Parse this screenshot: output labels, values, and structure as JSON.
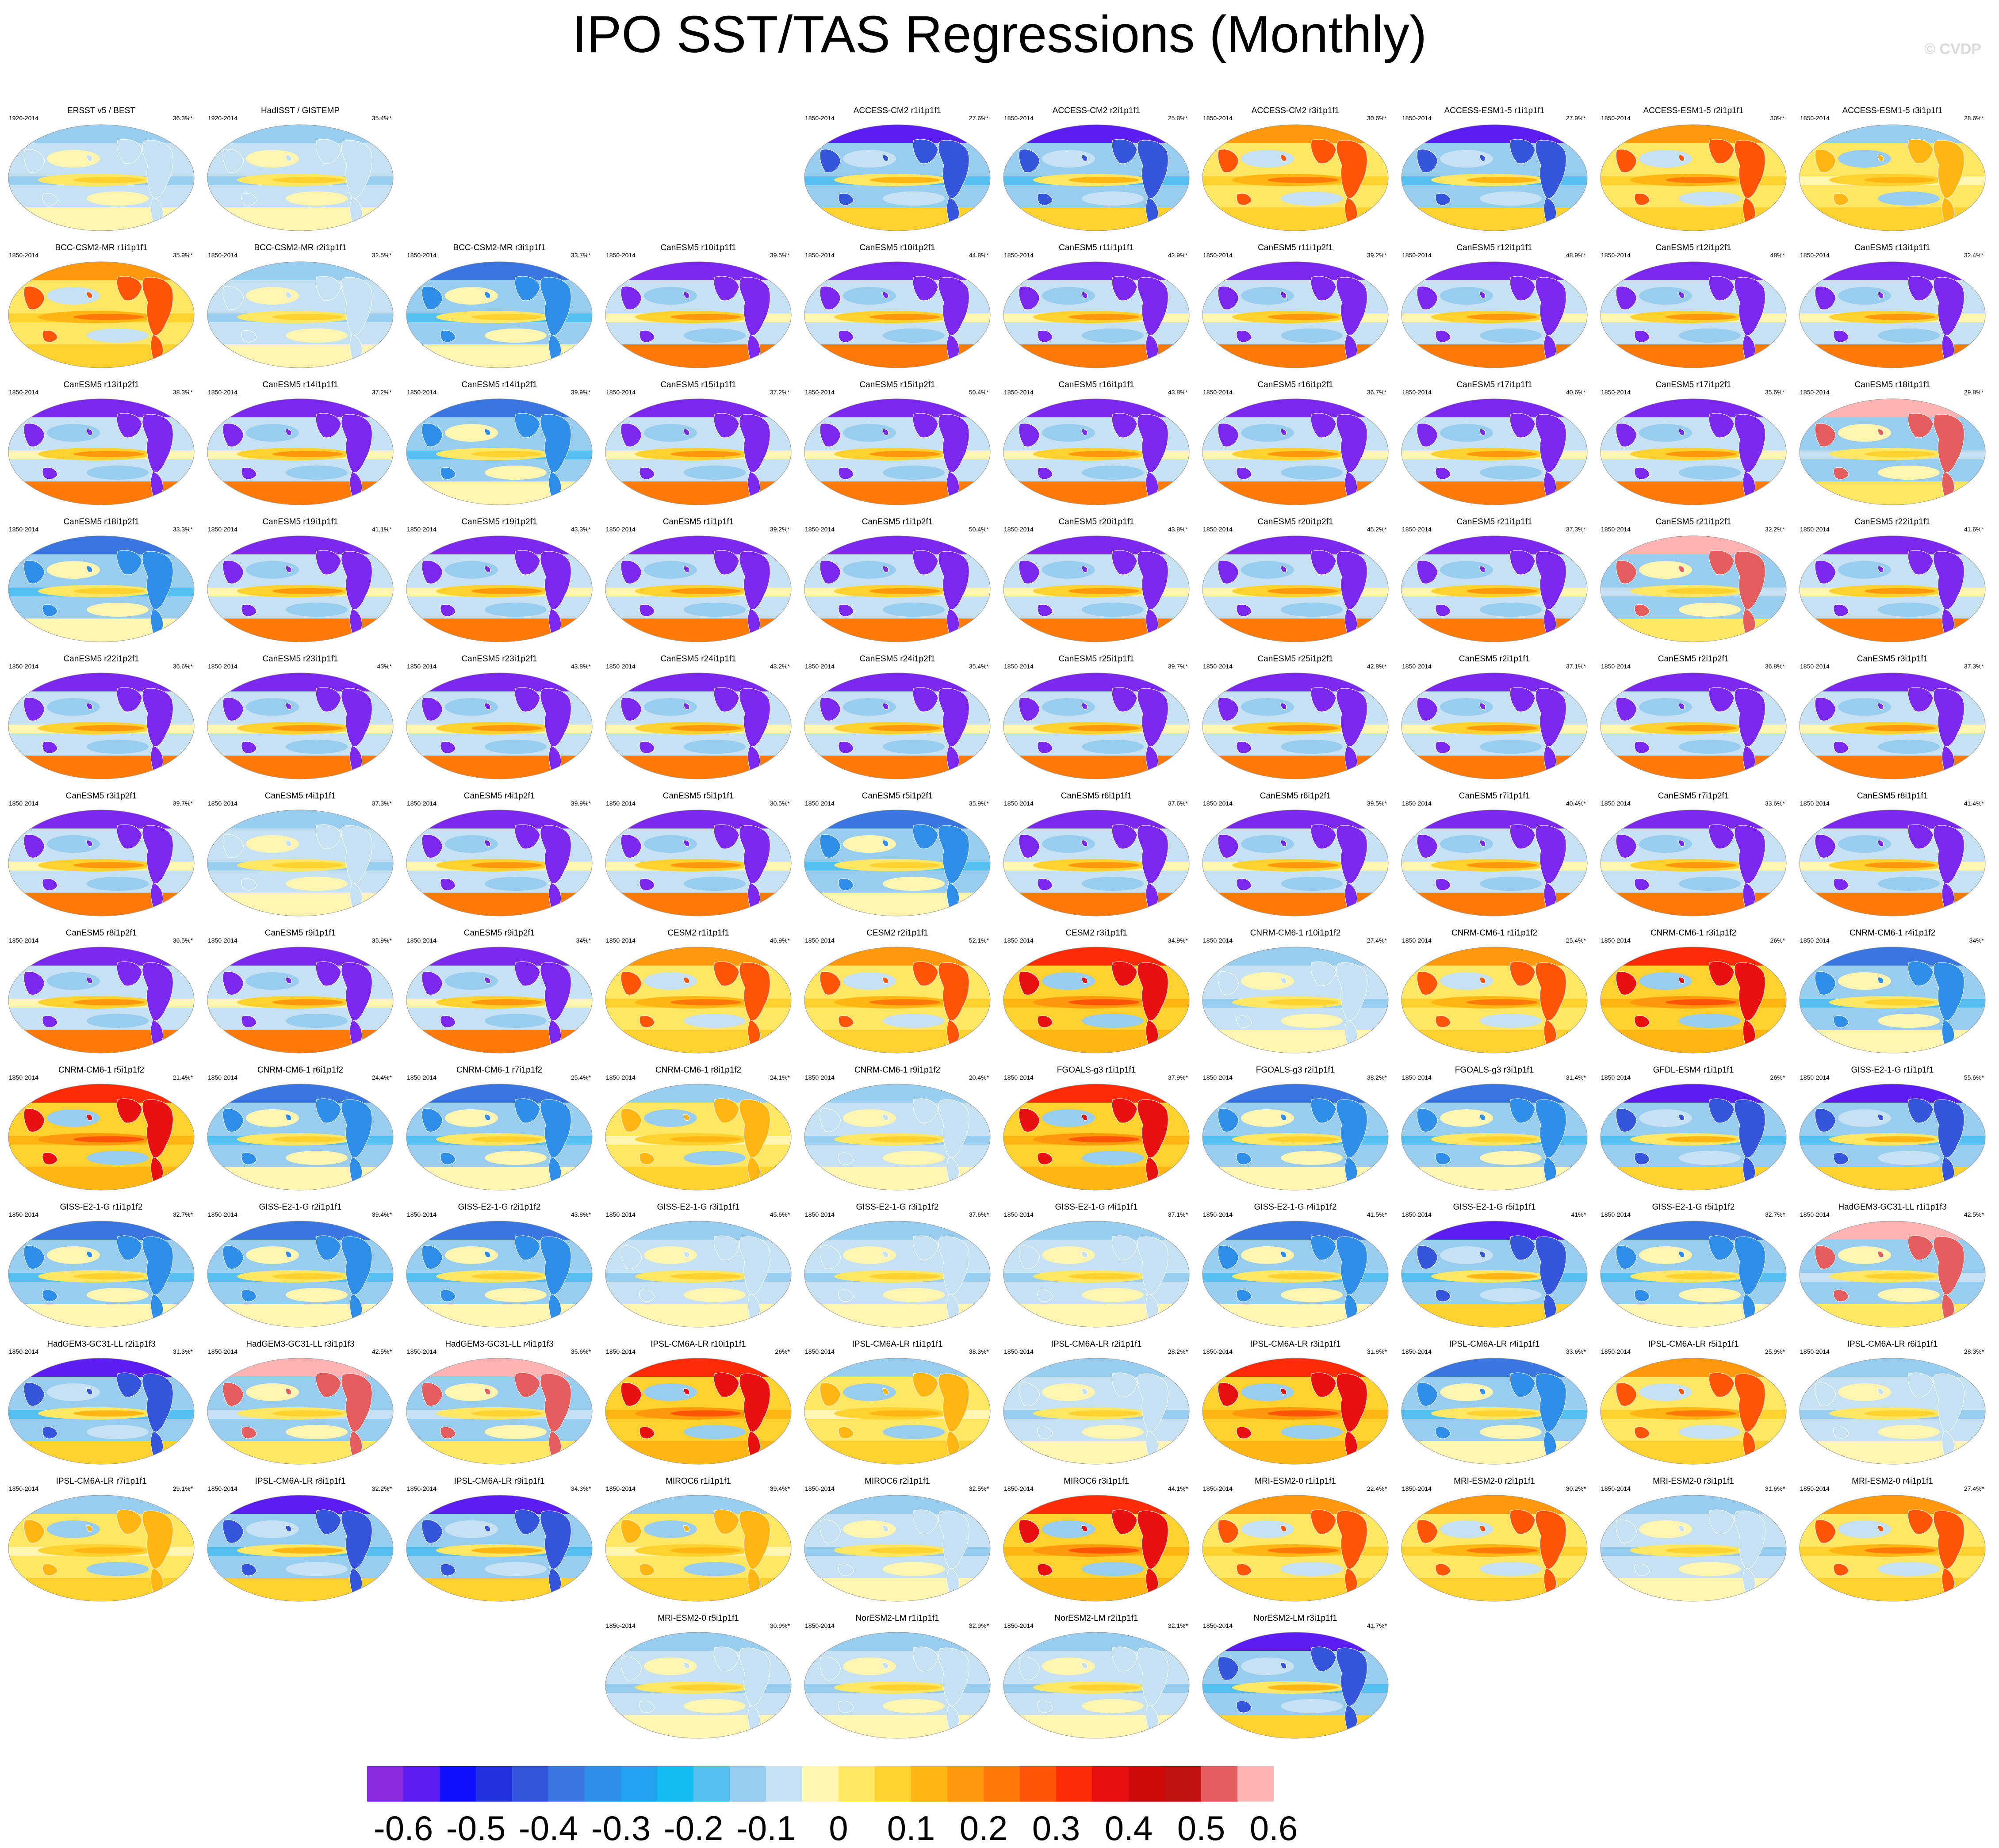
{
  "title": "IPO SST/TAS Regressions (Monthly)",
  "watermark": "© CVDP",
  "colors": {
    "background": "#ffffff",
    "scale": [
      "#8a2be2",
      "#5a1ef0",
      "#1010ff",
      "#2232e0",
      "#3556dc",
      "#3a76e0",
      "#2e8ee8",
      "#20a2f0",
      "#10bcf0",
      "#55c0ef",
      "#98cdef",
      "#c6e1f2",
      "#fff5b0",
      "#ffe763",
      "#ffd12e",
      "#ffb612",
      "#ff980b",
      "#ff7a08",
      "#ff5508",
      "#ff2a08",
      "#e81010",
      "#cc0a0a",
      "#c01212",
      "#e45e5e",
      "#ffb3b3"
    ]
  },
  "colorbar": {
    "labels": [
      "-0.6",
      "-0.5",
      "-0.4",
      "-0.3",
      "-0.2",
      "-0.1",
      "0",
      "0.1",
      "0.2",
      "0.3",
      "0.4",
      "0.5",
      "0.6"
    ]
  },
  "rows": [
    [
      {
        "col": 0,
        "title": "ERSST v5 / BEST",
        "years": "1920-2014",
        "pct": "36.3%*",
        "style": "pale"
      },
      {
        "col": 1,
        "title": "HadISST / GISTEMP",
        "years": "1920-2014",
        "pct": "35.4%*",
        "style": "pale"
      },
      {
        "col": 4,
        "title": "ACCESS-CM2 r1i1p1f1",
        "years": "1850-2014",
        "pct": "27.6%*",
        "style": "cold"
      },
      {
        "col": 5,
        "title": "ACCESS-CM2 r2i1p1f1",
        "years": "1850-2014",
        "pct": "25.8%*",
        "style": "cold"
      },
      {
        "col": 6,
        "title": "ACCESS-CM2 r3i1p1f1",
        "years": "1850-2014",
        "pct": "30.6%*",
        "style": "warm"
      },
      {
        "col": 7,
        "title": "ACCESS-ESM1-5 r1i1p1f1",
        "years": "1850-2014",
        "pct": "27.9%*",
        "style": "cold"
      },
      {
        "col": 8,
        "title": "ACCESS-ESM1-5 r2i1p1f1",
        "years": "1850-2014",
        "pct": "30%*",
        "style": "warm"
      },
      {
        "col": 9,
        "title": "ACCESS-ESM1-5 r3i1p1f1",
        "years": "1850-2014",
        "pct": "28.6%*",
        "style": "mixed"
      }
    ],
    [
      {
        "col": 0,
        "title": "BCC-CSM2-MR r1i1p1f1",
        "years": "1850-2014",
        "pct": "35.9%*",
        "style": "warm"
      },
      {
        "col": 1,
        "title": "BCC-CSM2-MR r2i1p1f1",
        "years": "1850-2014",
        "pct": "32.5%*",
        "style": "pale"
      },
      {
        "col": 2,
        "title": "BCC-CSM2-MR r3i1p1f1",
        "years": "1850-2014",
        "pct": "33.7%*",
        "style": "bluish"
      },
      {
        "col": 3,
        "title": "CanESM5 r10i1p1f1",
        "years": "1850-2014",
        "pct": "39.5%*",
        "style": "canesm"
      },
      {
        "col": 4,
        "title": "CanESM5 r10i1p2f1",
        "years": "1850-2014",
        "pct": "44.8%*",
        "style": "canesm"
      },
      {
        "col": 5,
        "title": "CanESM5 r11i1p1f1",
        "years": "1850-2014",
        "pct": "42.9%*",
        "style": "canesm"
      },
      {
        "col": 6,
        "title": "CanESM5 r11i1p2f1",
        "years": "1850-2014",
        "pct": "39.2%*",
        "style": "canesm"
      },
      {
        "col": 7,
        "title": "CanESM5 r12i1p1f1",
        "years": "1850-2014",
        "pct": "48.9%*",
        "style": "canesm"
      },
      {
        "col": 8,
        "title": "CanESM5 r12i1p2f1",
        "years": "1850-2014",
        "pct": "48%*",
        "style": "canesm"
      },
      {
        "col": 9,
        "title": "CanESM5 r13i1p1f1",
        "years": "1850-2014",
        "pct": "32.4%*",
        "style": "canesm"
      }
    ],
    [
      {
        "col": 0,
        "title": "CanESM5 r13i1p2f1",
        "years": "1850-2014",
        "pct": "38.3%*",
        "style": "canesm"
      },
      {
        "col": 1,
        "title": "CanESM5 r14i1p1f1",
        "years": "1850-2014",
        "pct": "37.2%*",
        "style": "canesm"
      },
      {
        "col": 2,
        "title": "CanESM5 r14i1p2f1",
        "years": "1850-2014",
        "pct": "39.9%*",
        "style": "bluish"
      },
      {
        "col": 3,
        "title": "CanESM5 r15i1p1f1",
        "years": "1850-2014",
        "pct": "37.2%*",
        "style": "canesm"
      },
      {
        "col": 4,
        "title": "CanESM5 r15i1p2f1",
        "years": "1850-2014",
        "pct": "50.4%*",
        "style": "canesm"
      },
      {
        "col": 5,
        "title": "CanESM5 r16i1p1f1",
        "years": "1850-2014",
        "pct": "43.8%*",
        "style": "canesm"
      },
      {
        "col": 6,
        "title": "CanESM5 r16i1p2f1",
        "years": "1850-2014",
        "pct": "36.7%*",
        "style": "canesm"
      },
      {
        "col": 7,
        "title": "CanESM5 r17i1p1f1",
        "years": "1850-2014",
        "pct": "40.6%*",
        "style": "canesm"
      },
      {
        "col": 8,
        "title": "CanESM5 r17i1p2f1",
        "years": "1850-2014",
        "pct": "35.6%*",
        "style": "canesm"
      },
      {
        "col": 9,
        "title": "CanESM5 r18i1p1f1",
        "years": "1850-2014",
        "pct": "29.8%*",
        "style": "pink"
      }
    ],
    [
      {
        "col": 0,
        "title": "CanESM5 r18i1p2f1",
        "years": "1850-2014",
        "pct": "33.3%*",
        "style": "bluish"
      },
      {
        "col": 1,
        "title": "CanESM5 r19i1p1f1",
        "years": "1850-2014",
        "pct": "41.1%*",
        "style": "canesm"
      },
      {
        "col": 2,
        "title": "CanESM5 r19i1p2f1",
        "years": "1850-2014",
        "pct": "43.3%*",
        "style": "canesm"
      },
      {
        "col": 3,
        "title": "CanESM5 r1i1p1f1",
        "years": "1850-2014",
        "pct": "39.2%*",
        "style": "canesm"
      },
      {
        "col": 4,
        "title": "CanESM5 r1i1p2f1",
        "years": "1850-2014",
        "pct": "50.4%*",
        "style": "canesm"
      },
      {
        "col": 5,
        "title": "CanESM5 r20i1p1f1",
        "years": "1850-2014",
        "pct": "43.8%*",
        "style": "canesm"
      },
      {
        "col": 6,
        "title": "CanESM5 r20i1p2f1",
        "years": "1850-2014",
        "pct": "45.2%*",
        "style": "canesm"
      },
      {
        "col": 7,
        "title": "CanESM5 r21i1p1f1",
        "years": "1850-2014",
        "pct": "37.3%*",
        "style": "canesm"
      },
      {
        "col": 8,
        "title": "CanESM5 r21i1p2f1",
        "years": "1850-2014",
        "pct": "32.2%*",
        "style": "pink"
      },
      {
        "col": 9,
        "title": "CanESM5 r22i1p1f1",
        "years": "1850-2014",
        "pct": "41.6%*",
        "style": "canesm"
      }
    ],
    [
      {
        "col": 0,
        "title": "CanESM5 r22i1p2f1",
        "years": "1850-2014",
        "pct": "36.6%*",
        "style": "canesm"
      },
      {
        "col": 1,
        "title": "CanESM5 r23i1p1f1",
        "years": "1850-2014",
        "pct": "43%*",
        "style": "canesm"
      },
      {
        "col": 2,
        "title": "CanESM5 r23i1p2f1",
        "years": "1850-2014",
        "pct": "43.8%*",
        "style": "canesm"
      },
      {
        "col": 3,
        "title": "CanESM5 r24i1p1f1",
        "years": "1850-2014",
        "pct": "43.2%*",
        "style": "canesm"
      },
      {
        "col": 4,
        "title": "CanESM5 r24i1p2f1",
        "years": "1850-2014",
        "pct": "35.4%*",
        "style": "canesm"
      },
      {
        "col": 5,
        "title": "CanESM5 r25i1p1f1",
        "years": "1850-2014",
        "pct": "39.7%*",
        "style": "canesm"
      },
      {
        "col": 6,
        "title": "CanESM5 r25i1p2f1",
        "years": "1850-2014",
        "pct": "42.8%*",
        "style": "canesm"
      },
      {
        "col": 7,
        "title": "CanESM5 r2i1p1f1",
        "years": "1850-2014",
        "pct": "37.1%*",
        "style": "canesm"
      },
      {
        "col": 8,
        "title": "CanESM5 r2i1p2f1",
        "years": "1850-2014",
        "pct": "36.8%*",
        "style": "canesm"
      },
      {
        "col": 9,
        "title": "CanESM5 r3i1p1f1",
        "years": "1850-2014",
        "pct": "37.3%*",
        "style": "canesm"
      }
    ],
    [
      {
        "col": 0,
        "title": "CanESM5 r3i1p2f1",
        "years": "1850-2014",
        "pct": "39.7%*",
        "style": "canesm"
      },
      {
        "col": 1,
        "title": "CanESM5 r4i1p1f1",
        "years": "1850-2014",
        "pct": "37.3%*",
        "style": "pale"
      },
      {
        "col": 2,
        "title": "CanESM5 r4i1p2f1",
        "years": "1850-2014",
        "pct": "39.9%*",
        "style": "canesm"
      },
      {
        "col": 3,
        "title": "CanESM5 r5i1p1f1",
        "years": "1850-2014",
        "pct": "30.5%*",
        "style": "canesm"
      },
      {
        "col": 4,
        "title": "CanESM5 r5i1p2f1",
        "years": "1850-2014",
        "pct": "35.9%*",
        "style": "bluish"
      },
      {
        "col": 5,
        "title": "CanESM5 r6i1p1f1",
        "years": "1850-2014",
        "pct": "37.6%*",
        "style": "canesm"
      },
      {
        "col": 6,
        "title": "CanESM5 r6i1p2f1",
        "years": "1850-2014",
        "pct": "39.5%*",
        "style": "canesm"
      },
      {
        "col": 7,
        "title": "CanESM5 r7i1p1f1",
        "years": "1850-2014",
        "pct": "40.4%*",
        "style": "canesm"
      },
      {
        "col": 8,
        "title": "CanESM5 r7i1p2f1",
        "years": "1850-2014",
        "pct": "33.6%*",
        "style": "canesm"
      },
      {
        "col": 9,
        "title": "CanESM5 r8i1p1f1",
        "years": "1850-2014",
        "pct": "41.4%*",
        "style": "canesm"
      }
    ],
    [
      {
        "col": 0,
        "title": "CanESM5 r8i1p2f1",
        "years": "1850-2014",
        "pct": "36.5%*",
        "style": "canesm"
      },
      {
        "col": 1,
        "title": "CanESM5 r9i1p1f1",
        "years": "1850-2014",
        "pct": "35.9%*",
        "style": "canesm"
      },
      {
        "col": 2,
        "title": "CanESM5 r9i1p2f1",
        "years": "1850-2014",
        "pct": "34%*",
        "style": "canesm"
      },
      {
        "col": 3,
        "title": "CESM2 r1i1p1f1",
        "years": "1850-2014",
        "pct": "46.9%*",
        "style": "warm"
      },
      {
        "col": 4,
        "title": "CESM2 r2i1p1f1",
        "years": "1850-2014",
        "pct": "52.1%*",
        "style": "warm"
      },
      {
        "col": 5,
        "title": "CESM2 r3i1p1f1",
        "years": "1850-2014",
        "pct": "34.9%*",
        "style": "hot"
      },
      {
        "col": 6,
        "title": "CNRM-CM6-1 r10i1p1f2",
        "years": "1850-2014",
        "pct": "27.4%*",
        "style": "pale"
      },
      {
        "col": 7,
        "title": "CNRM-CM6-1 r1i1p1f2",
        "years": "1850-2014",
        "pct": "25.4%*",
        "style": "warm"
      },
      {
        "col": 8,
        "title": "CNRM-CM6-1 r3i1p1f2",
        "years": "1850-2014",
        "pct": "26%*",
        "style": "hot"
      },
      {
        "col": 9,
        "title": "CNRM-CM6-1 r4i1p1f2",
        "years": "1850-2014",
        "pct": "34%*",
        "style": "bluish"
      }
    ],
    [
      {
        "col": 0,
        "title": "CNRM-CM6-1 r5i1p1f2",
        "years": "1850-2014",
        "pct": "21.4%*",
        "style": "hot"
      },
      {
        "col": 1,
        "title": "CNRM-CM6-1 r6i1p1f2",
        "years": "1850-2014",
        "pct": "24.4%*",
        "style": "bluish"
      },
      {
        "col": 2,
        "title": "CNRM-CM6-1 r7i1p1f2",
        "years": "1850-2014",
        "pct": "25.4%*",
        "style": "bluish"
      },
      {
        "col": 3,
        "title": "CNRM-CM6-1 r8i1p1f2",
        "years": "1850-2014",
        "pct": "24.1%*",
        "style": "mixed"
      },
      {
        "col": 4,
        "title": "CNRM-CM6-1 r9i1p1f2",
        "years": "1850-2014",
        "pct": "20.4%*",
        "style": "pale"
      },
      {
        "col": 5,
        "title": "FGOALS-g3 r1i1p1f1",
        "years": "1850-2014",
        "pct": "37.9%*",
        "style": "hot"
      },
      {
        "col": 6,
        "title": "FGOALS-g3 r2i1p1f1",
        "years": "1850-2014",
        "pct": "38.2%*",
        "style": "bluish"
      },
      {
        "col": 7,
        "title": "FGOALS-g3 r3i1p1f1",
        "years": "1850-2014",
        "pct": "31.4%*",
        "style": "bluish"
      },
      {
        "col": 8,
        "title": "GFDL-ESM4 r1i1p1f1",
        "years": "1850-2014",
        "pct": "26%*",
        "style": "cold"
      },
      {
        "col": 9,
        "title": "GISS-E2-1-G r1i1p1f1",
        "years": "1850-2014",
        "pct": "55.6%*",
        "style": "cold"
      }
    ],
    [
      {
        "col": 0,
        "title": "GISS-E2-1-G r1i1p1f2",
        "years": "1850-2014",
        "pct": "32.7%*",
        "style": "bluish"
      },
      {
        "col": 1,
        "title": "GISS-E2-1-G r2i1p1f1",
        "years": "1850-2014",
        "pct": "39.4%*",
        "style": "bluish"
      },
      {
        "col": 2,
        "title": "GISS-E2-1-G r2i1p1f2",
        "years": "1850-2014",
        "pct": "43.8%*",
        "style": "bluish"
      },
      {
        "col": 3,
        "title": "GISS-E2-1-G r3i1p1f1",
        "years": "1850-2014",
        "pct": "45.6%*",
        "style": "pale"
      },
      {
        "col": 4,
        "title": "GISS-E2-1-G r3i1p1f2",
        "years": "1850-2014",
        "pct": "37.6%*",
        "style": "pale"
      },
      {
        "col": 5,
        "title": "GISS-E2-1-G r4i1p1f1",
        "years": "1850-2014",
        "pct": "37.1%*",
        "style": "pale"
      },
      {
        "col": 6,
        "title": "GISS-E2-1-G r4i1p1f2",
        "years": "1850-2014",
        "pct": "41.5%*",
        "style": "bluish"
      },
      {
        "col": 7,
        "title": "GISS-E2-1-G r5i1p1f1",
        "years": "1850-2014",
        "pct": "41%*",
        "style": "cold"
      },
      {
        "col": 8,
        "title": "GISS-E2-1-G r5i1p1f2",
        "years": "1850-2014",
        "pct": "32.7%*",
        "style": "bluish"
      },
      {
        "col": 9,
        "title": "HadGEM3-GC31-LL r1i1p1f3",
        "years": "1850-2014",
        "pct": "42.5%*",
        "style": "pink"
      }
    ],
    [
      {
        "col": 0,
        "title": "HadGEM3-GC31-LL r2i1p1f3",
        "years": "1850-2014",
        "pct": "31.3%*",
        "style": "cold"
      },
      {
        "col": 1,
        "title": "HadGEM3-GC31-LL r3i1p1f3",
        "years": "1850-2014",
        "pct": "42.5%*",
        "style": "pink"
      },
      {
        "col": 2,
        "title": "HadGEM3-GC31-LL r4i1p1f3",
        "years": "1850-2014",
        "pct": "35.6%*",
        "style": "pink"
      },
      {
        "col": 3,
        "title": "IPSL-CM6A-LR r10i1p1f1",
        "years": "1850-2014",
        "pct": "26%*",
        "style": "hot"
      },
      {
        "col": 4,
        "title": "IPSL-CM6A-LR r1i1p1f1",
        "years": "1850-2014",
        "pct": "38.3%*",
        "style": "mixed"
      },
      {
        "col": 5,
        "title": "IPSL-CM6A-LR r2i1p1f1",
        "years": "1850-2014",
        "pct": "28.2%*",
        "style": "pale"
      },
      {
        "col": 6,
        "title": "IPSL-CM6A-LR r3i1p1f1",
        "years": "1850-2014",
        "pct": "31.8%*",
        "style": "hot"
      },
      {
        "col": 7,
        "title": "IPSL-CM6A-LR r4i1p1f1",
        "years": "1850-2014",
        "pct": "33.6%*",
        "style": "bluish"
      },
      {
        "col": 8,
        "title": "IPSL-CM6A-LR r5i1p1f1",
        "years": "1850-2014",
        "pct": "25.9%*",
        "style": "warm"
      },
      {
        "col": 9,
        "title": "IPSL-CM6A-LR r6i1p1f1",
        "years": "1850-2014",
        "pct": "28.3%*",
        "style": "pale"
      }
    ],
    [
      {
        "col": 0,
        "title": "IPSL-CM6A-LR r7i1p1f1",
        "years": "1850-2014",
        "pct": "29.1%*",
        "style": "mixed"
      },
      {
        "col": 1,
        "title": "IPSL-CM6A-LR r8i1p1f1",
        "years": "1850-2014",
        "pct": "32.2%*",
        "style": "cold"
      },
      {
        "col": 2,
        "title": "IPSL-CM6A-LR r9i1p1f1",
        "years": "1850-2014",
        "pct": "34.3%*",
        "style": "cold"
      },
      {
        "col": 3,
        "title": "MIROC6 r1i1p1f1",
        "years": "1850-2014",
        "pct": "39.4%*",
        "style": "mixed"
      },
      {
        "col": 4,
        "title": "MIROC6 r2i1p1f1",
        "years": "1850-2014",
        "pct": "32.5%*",
        "style": "pale"
      },
      {
        "col": 5,
        "title": "MIROC6 r3i1p1f1",
        "years": "1850-2014",
        "pct": "44.1%*",
        "style": "hot"
      },
      {
        "col": 6,
        "title": "MRI-ESM2-0 r1i1p1f1",
        "years": "1850-2014",
        "pct": "22.4%*",
        "style": "warm"
      },
      {
        "col": 7,
        "title": "MRI-ESM2-0 r2i1p1f1",
        "years": "1850-2014",
        "pct": "30.2%*",
        "style": "warm"
      },
      {
        "col": 8,
        "title": "MRI-ESM2-0 r3i1p1f1",
        "years": "1850-2014",
        "pct": "31.6%*",
        "style": "pale"
      },
      {
        "col": 9,
        "title": "MRI-ESM2-0 r4i1p1f1",
        "years": "1850-2014",
        "pct": "27.4%*",
        "style": "warm"
      }
    ],
    [
      {
        "col": 3,
        "title": "MRI-ESM2-0 r5i1p1f1",
        "years": "1850-2014",
        "pct": "30.9%*",
        "style": "pale"
      },
      {
        "col": 4,
        "title": "NorESM2-LM r1i1p1f1",
        "years": "1850-2014",
        "pct": "32.9%*",
        "style": "pale"
      },
      {
        "col": 5,
        "title": "NorESM2-LM r2i1p1f1",
        "years": "1850-2014",
        "pct": "32.1%*",
        "style": "pale"
      },
      {
        "col": 6,
        "title": "NorESM2-LM r3i1p1f1",
        "years": "1850-2014",
        "pct": "41.7%*",
        "style": "cold"
      }
    ]
  ]
}
